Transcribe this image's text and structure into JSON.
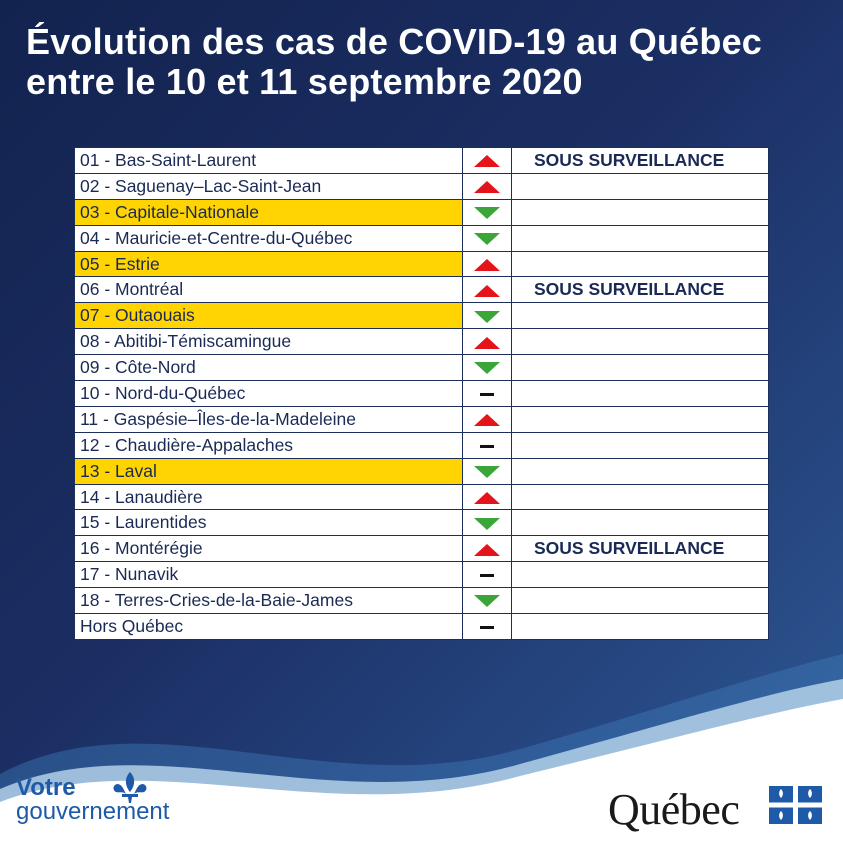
{
  "title": {
    "line1": "Évolution des cas de COVID-19 au Québec",
    "line2": "entre le 10 et 11 septembre 2020"
  },
  "colors": {
    "up": "#e4141b",
    "down": "#3aa63a",
    "highlight": "#ffd400",
    "surveillance": "#e32222"
  },
  "regions": [
    {
      "name": "01 - Bas-Saint-Laurent",
      "trend": "up",
      "note": "SOUS SURVEILLANCE",
      "highlight": false
    },
    {
      "name": "02 - Saguenay–Lac-Saint-Jean",
      "trend": "up",
      "note": "",
      "highlight": false
    },
    {
      "name": "03 - Capitale-Nationale",
      "trend": "down",
      "note": "",
      "highlight": true
    },
    {
      "name": "04 - Mauricie-et-Centre-du-Québec",
      "trend": "down",
      "note": "",
      "highlight": false
    },
    {
      "name": "05 - Estrie",
      "trend": "up",
      "note": "",
      "highlight": true
    },
    {
      "name": "06 - Montréal",
      "trend": "up",
      "note": "SOUS SURVEILLANCE",
      "highlight": false
    },
    {
      "name": "07 - Outaouais",
      "trend": "down",
      "note": "",
      "highlight": true
    },
    {
      "name": "08 - Abitibi-Témiscamingue",
      "trend": "up",
      "note": "",
      "highlight": false
    },
    {
      "name": "09 - Côte-Nord",
      "trend": "down",
      "note": "",
      "highlight": false
    },
    {
      "name": "10 - Nord-du-Québec",
      "trend": "flat",
      "note": "",
      "highlight": false
    },
    {
      "name": "11 - Gaspésie–Îles-de-la-Madeleine",
      "trend": "up",
      "note": "",
      "highlight": false
    },
    {
      "name": "12 - Chaudière-Appalaches",
      "trend": "flat",
      "note": "",
      "highlight": false
    },
    {
      "name": "13 - Laval",
      "trend": "down",
      "note": "",
      "highlight": true
    },
    {
      "name": "14 - Lanaudière",
      "trend": "up",
      "note": "",
      "highlight": false
    },
    {
      "name": "15 - Laurentides",
      "trend": "down",
      "note": "",
      "highlight": false
    },
    {
      "name": "16 - Montérégie",
      "trend": "up",
      "note": "SOUS SURVEILLANCE",
      "highlight": false
    },
    {
      "name": "17 - Nunavik",
      "trend": "flat",
      "note": "",
      "highlight": false
    },
    {
      "name": "18 - Terres-Cries-de-la-Baie-James",
      "trend": "down",
      "note": "",
      "highlight": false
    },
    {
      "name": "Hors Québec",
      "trend": "flat",
      "note": "",
      "highlight": false
    }
  ],
  "footer": {
    "votre_line1": "Votre",
    "votre_line2": "gouvernement",
    "quebec_wordmark": "Québec",
    "left_logo_icon": "fleur-de-lis-icon",
    "right_logo_icon": "quebec-flag-icon"
  }
}
